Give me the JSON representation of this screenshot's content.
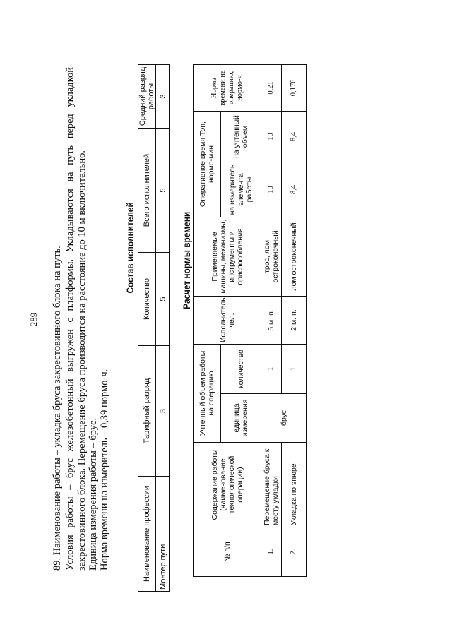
{
  "page_number": "289",
  "paragraph": {
    "lines": [
      "89. Наименование работы – укладка бруса закрестовинного блока на путь.",
      "Условия работы – брус железобетонный выгружен с платформы. Укладываются на путь перед укладкой",
      "закрестовинного блока. Перемещение бруса производится на расстояние до 10 м включительно.",
      "Единица измерения работы – брус.",
      "Норма времени на измеритель – 0,39 нормо-ч."
    ]
  },
  "staff_table": {
    "title": "Состав исполнителей",
    "headers": [
      "Наименование профессии",
      "Тарифный разряд",
      "Количество",
      "Всего исполнителей",
      "Средний разряд работы"
    ],
    "row": [
      "Монтер пути",
      "3",
      "5",
      "5",
      "3"
    ]
  },
  "norm_table": {
    "title": "Расчет нормы времени",
    "headers": {
      "num": "№ п/п",
      "content": "Содержание работы (наименование технологической операции)",
      "volume": "Учтенный объем работы на операцию",
      "volume_unit": "единица измерения",
      "volume_qty": "количество",
      "performer": "Исполнитель, чел.",
      "tools": "Применяемые машины, механизмы, инструменты и приспособления",
      "op_time": "Оперативное время Топ, нормо-мин",
      "op_per_unit": "на измеритель элемента работы",
      "op_per_volume": "на учтенный объем",
      "norm": "Норма времени на операцию, нормо-ч"
    },
    "unit_merged": "брус",
    "rows": [
      {
        "num": "1.",
        "content": "Перемещение бруса к месту укладки",
        "qty": "1",
        "performer": "5 м. п.",
        "tools": "трос, лом остроконечный",
        "per_unit": "10",
        "per_volume": "10",
        "norm": "0,21"
      },
      {
        "num": "2.",
        "content": "Укладка по эпюре",
        "qty": "1",
        "performer": "2 м. п.",
        "tools": "лом остроконечный",
        "per_unit": "8,4",
        "per_volume": "8,4",
        "norm": "0,176"
      }
    ]
  }
}
